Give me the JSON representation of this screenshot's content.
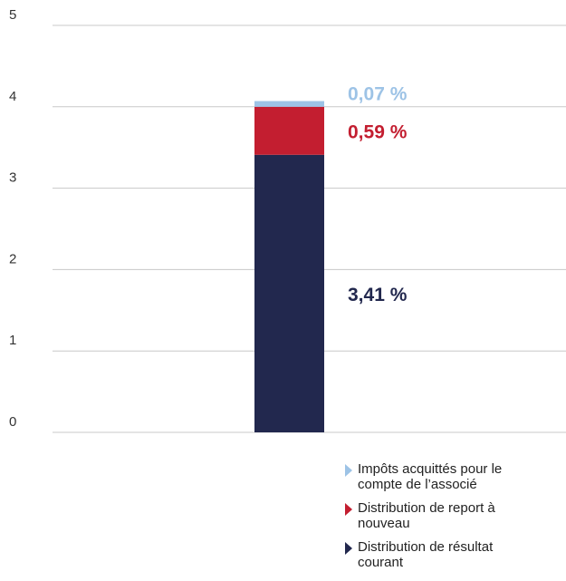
{
  "chart_data": {
    "type": "bar",
    "stacked": true,
    "categories": [
      ""
    ],
    "ylim": [
      0,
      5
    ],
    "yticks": [
      "0",
      "1",
      "2",
      "3",
      "4",
      "5"
    ],
    "grid": true,
    "legend_position": "bottom-right",
    "series": [
      {
        "name": "Distribution de résultat courant",
        "values": [
          3.41
        ],
        "label": "3,41 %",
        "color": "#22284e"
      },
      {
        "name": "Distribution de report à nouveau",
        "values": [
          0.59
        ],
        "label": "0,59 %",
        "color": "#c31e30"
      },
      {
        "name": "Impôts acquittés pour le compte de l’associé",
        "values": [
          0.07
        ],
        "label": "0,07 %",
        "color": "#9dc3e6"
      }
    ]
  },
  "legend": {
    "items": [
      {
        "text": "Impôts acquittés pour le compte de l’associé",
        "color": "#9dc3e6"
      },
      {
        "text": "Distribution de report à nouveau",
        "color": "#c31e30"
      },
      {
        "text": "Distribution de résultat courant",
        "color": "#22284e"
      }
    ]
  }
}
